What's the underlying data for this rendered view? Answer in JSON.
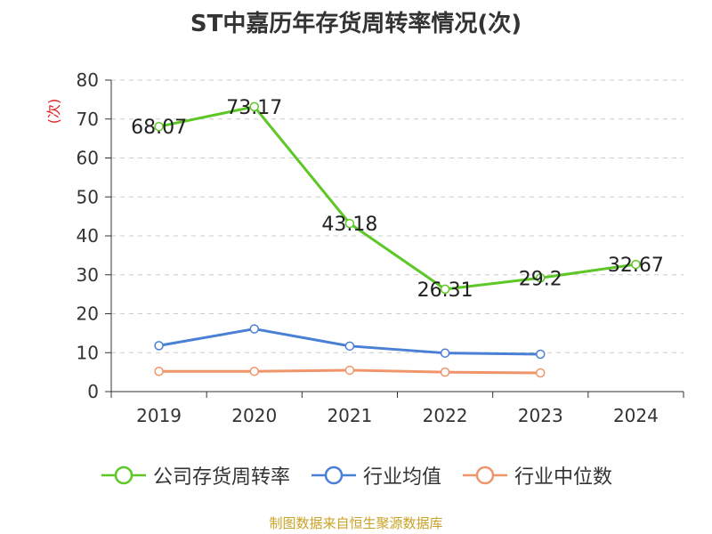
{
  "chart_data": {
    "type": "line",
    "title": "ST中嘉历年存货周转率情况(次)",
    "ylabel": "(次)",
    "xlabel": "",
    "categories": [
      "2019",
      "2020",
      "2021",
      "2022",
      "2023",
      "2024"
    ],
    "ylim": [
      0,
      80
    ],
    "yticks": [
      0,
      10,
      20,
      30,
      40,
      50,
      60,
      70,
      80
    ],
    "grid": true,
    "legend_position": "bottom",
    "series": [
      {
        "name": "公司存货周转率",
        "color": "#5cc725",
        "values": [
          68.07,
          73.17,
          43.18,
          26.31,
          29.2,
          32.67
        ],
        "labels": [
          "68.07",
          "73.17",
          "43.18",
          "26.31",
          "29.2",
          "32.67"
        ]
      },
      {
        "name": "行业均值",
        "color": "#4a7fd6",
        "values": [
          11.8,
          16.1,
          11.7,
          9.9,
          9.6,
          null
        ]
      },
      {
        "name": "行业中位数",
        "color": "#f0956a",
        "values": [
          5.2,
          5.2,
          5.5,
          5.0,
          4.8,
          null
        ]
      }
    ]
  },
  "source_note": "制图数据来自恒生聚源数据库"
}
